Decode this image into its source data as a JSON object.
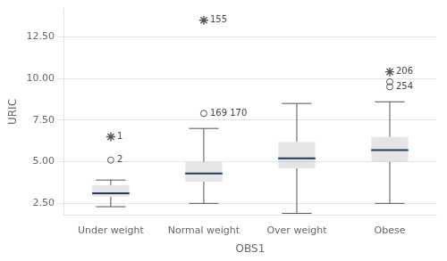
{
  "chart_data": {
    "type": "box",
    "categories": [
      "Under weight",
      "Normal weight",
      "Over weight",
      "Obese"
    ],
    "xlabel": "OBS1",
    "ylabel": "URIC",
    "ylim": [
      1.8,
      14.2
    ],
    "yticks": [
      {
        "value": 2.5,
        "label": "2.50"
      },
      {
        "value": 5.0,
        "label": "5.00"
      },
      {
        "value": 7.5,
        "label": "7.50"
      },
      {
        "value": 10.0,
        "label": "10.00"
      },
      {
        "value": 12.5,
        "label": "12.50"
      }
    ],
    "grid": "y",
    "boxes": [
      {
        "q1": 2.9,
        "median": 3.1,
        "q3": 3.6,
        "whislo": 2.3,
        "whishi": 3.9,
        "fliers": [
          {
            "value": 5.1,
            "label": "2",
            "marker": "circle"
          },
          {
            "value": 6.5,
            "label": "1",
            "marker": "star"
          }
        ]
      },
      {
        "q1": 3.8,
        "median": 4.3,
        "q3": 5.0,
        "whislo": 2.5,
        "whishi": 7.0,
        "fliers": [
          {
            "value": 7.9,
            "label": "169 170",
            "marker": "circle"
          },
          {
            "value": 13.5,
            "label": "155",
            "marker": "star"
          }
        ]
      },
      {
        "q1": 4.6,
        "median": 5.2,
        "q3": 6.2,
        "whislo": 1.9,
        "whishi": 8.5,
        "fliers": []
      },
      {
        "q1": 5.0,
        "median": 5.7,
        "q3": 6.5,
        "whislo": 2.5,
        "whishi": 8.6,
        "fliers": [
          {
            "value": 9.5,
            "label": "254",
            "marker": "circle"
          },
          {
            "value": 9.8,
            "marker": "circle"
          },
          {
            "value": 10.4,
            "label": "206",
            "marker": "star"
          }
        ]
      }
    ]
  }
}
